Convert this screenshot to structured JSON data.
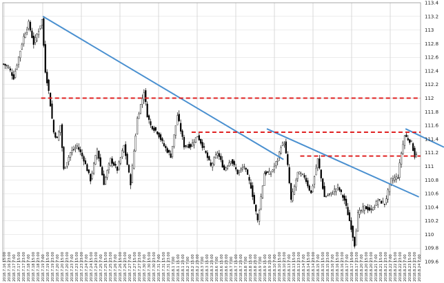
{
  "chart_data": {
    "type": "candlestick",
    "ylim": [
      109.6,
      113.4
    ],
    "y_ticks": [
      "113.4",
      "113.2",
      "113",
      "112.8",
      "112.6",
      "112.4",
      "112.2",
      "112",
      "111.8",
      "111.6",
      "111.4",
      "111.2",
      "111",
      "110.8",
      "110.6",
      "110.4",
      "110.2",
      "110",
      "109.8",
      "109.6"
    ],
    "x_ticks": [
      "2018.7.16 15:00",
      "2018.7.16 23:00",
      "2018.7.17 7:00",
      "2018.7.17 15:00",
      "2018.7.17 23:00",
      "2018.7.18 7:00",
      "2018.7.18 15:00",
      "2018.7.18 23:00",
      "2018.7.19 7:00",
      "2018.7.19 15:00",
      "2018.7.19 23:00",
      "2018.7.20 7:00",
      "2018.7.20 15:00",
      "2018.7.20 23:00",
      "2018.7.23 7:00",
      "2018.7.23 15:00",
      "2018.7.23 23:00",
      "2018.7.24 7:00",
      "2018.7.24 15:00",
      "2018.7.24 23:00",
      "2018.7.25 7:00",
      "2018.7.25 15:00",
      "2018.7.25 23:00",
      "2018.7.26 7:00",
      "2018.7.26 15:00",
      "2018.7.26 23:00",
      "2018.7.27 7:00",
      "2018.7.27 15:00",
      "2018.7.27 23:00",
      "2018.7.30 7:00",
      "2018.7.30 15:00",
      "2018.7.30 23:00",
      "2018.7.31 7:00",
      "2018.7.31 15:00",
      "2018.7.31 23:00",
      "2018.8.1 7:00",
      "2018.8.1 15:00",
      "2018.8.1 23:00",
      "2018.8.2 7:00",
      "2018.8.2 15:00",
      "2018.8.2 23:00",
      "2018.8.3 7:00",
      "2018.8.3 15:00",
      "2018.8.3 23:00",
      "2018.8.6 7:00",
      "2018.8.6 15:00",
      "2018.8.6 23:00",
      "2018.8.7 7:00",
      "2018.8.7 15:00",
      "2018.8.7 23:00",
      "2018.8.8 7:00",
      "2018.8.8 15:00",
      "2018.8.8 23:00",
      "2018.8.9 7:00",
      "2018.8.9 15:00",
      "2018.8.9 23:00",
      "2018.8.10 7:00",
      "2018.8.10 15:00",
      "2018.8.10 23:00",
      "2018.8.13 7:00",
      "2018.8.13 15:00",
      "2018.8.13 23:00",
      "2018.8.14 7:00",
      "2018.8.14 15:00",
      "2018.8.14 23:00",
      "2018.8.15 7:00",
      "2018.8.15 15:00",
      "2018.8.15 23:00",
      "2018.8.16 7:00",
      "2018.8.16 15:00",
      "2018.8.16 23:00",
      "2018.8.17 7:00",
      "2018.8.17 15:00",
      "2018.8.17 23:00",
      "2018.8.20 7:00",
      "2018.8.20 15:00",
      "2018.8.20 23:00",
      "2018.8.21 7:00",
      "2018.8.21 15:00",
      "2018.8.21 23:00",
      "2018.8.22 7:00",
      "2018.8.22 15:00",
      "2018.8.22 23:00",
      "2018.8.23 7:00",
      "2018.8.23 15:00",
      "2018.8.23 23:00",
      "2018.8.24 7:00"
    ],
    "series_keypoints": [
      [
        0,
        112.5
      ],
      [
        3,
        112.45
      ],
      [
        6,
        112.3
      ],
      [
        9,
        112.6
      ],
      [
        12,
        112.9
      ],
      [
        15,
        113.1
      ],
      [
        18,
        112.8
      ],
      [
        21,
        113.0
      ],
      [
        23,
        113.15
      ],
      [
        25,
        112.4
      ],
      [
        27,
        112.1
      ],
      [
        30,
        111.5
      ],
      [
        32,
        111.4
      ],
      [
        34,
        111.6
      ],
      [
        36,
        110.95
      ],
      [
        40,
        111.2
      ],
      [
        44,
        111.3
      ],
      [
        48,
        111.1
      ],
      [
        52,
        110.8
      ],
      [
        56,
        111.25
      ],
      [
        60,
        110.75
      ],
      [
        64,
        111.1
      ],
      [
        68,
        110.95
      ],
      [
        72,
        111.3
      ],
      [
        76,
        110.75
      ],
      [
        80,
        111.7
      ],
      [
        84,
        112.1
      ],
      [
        86,
        111.75
      ],
      [
        88,
        111.6
      ],
      [
        92,
        111.5
      ],
      [
        96,
        111.3
      ],
      [
        100,
        111.15
      ],
      [
        104,
        111.75
      ],
      [
        108,
        111.3
      ],
      [
        112,
        111.3
      ],
      [
        116,
        111.45
      ],
      [
        120,
        111.25
      ],
      [
        124,
        111.0
      ],
      [
        128,
        111.2
      ],
      [
        132,
        110.95
      ],
      [
        136,
        111.1
      ],
      [
        140,
        110.9
      ],
      [
        144,
        111.0
      ],
      [
        148,
        110.7
      ],
      [
        152,
        110.2
      ],
      [
        156,
        110.9
      ],
      [
        160,
        110.9
      ],
      [
        164,
        111.1
      ],
      [
        166,
        111.3
      ],
      [
        168,
        111.35
      ],
      [
        170,
        111.0
      ],
      [
        172,
        110.5
      ],
      [
        176,
        110.9
      ],
      [
        180,
        110.85
      ],
      [
        184,
        110.6
      ],
      [
        188,
        111.1
      ],
      [
        192,
        110.55
      ],
      [
        196,
        110.6
      ],
      [
        200,
        110.7
      ],
      [
        204,
        110.5
      ],
      [
        208,
        110.1
      ],
      [
        210,
        109.85
      ],
      [
        212,
        110.3
      ],
      [
        216,
        110.4
      ],
      [
        220,
        110.35
      ],
      [
        224,
        110.5
      ],
      [
        228,
        110.45
      ],
      [
        232,
        110.8
      ],
      [
        236,
        110.85
      ],
      [
        238,
        111.2
      ],
      [
        240,
        111.45
      ],
      [
        242,
        111.4
      ],
      [
        244,
        111.35
      ],
      [
        246,
        111.15
      ],
      [
        247,
        111.2
      ]
    ],
    "trendlines": [
      {
        "x0": 24,
        "y0": 113.2,
        "x1": 168,
        "y1": 111.1
      },
      {
        "x0": 158,
        "y0": 111.55,
        "x1": 249,
        "y1": 110.55
      },
      {
        "x0": 241,
        "y0": 111.55,
        "x1": 264,
        "y1": 111.28
      }
    ],
    "levels": [
      {
        "y": 112.0,
        "x0": 23,
        "x1": 250
      },
      {
        "y": 111.5,
        "x0": 113,
        "x1": 250
      },
      {
        "y": 111.15,
        "x0": 178,
        "x1": 250
      }
    ],
    "grid": true
  }
}
